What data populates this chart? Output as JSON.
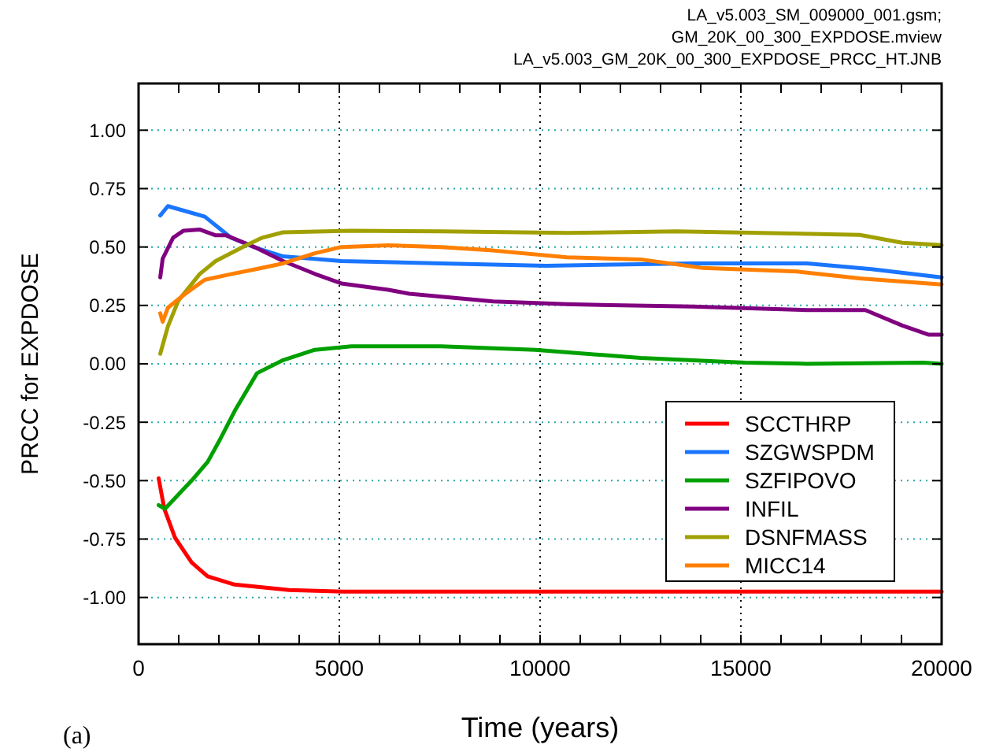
{
  "chart_data": {
    "type": "line",
    "annotations": [
      "LA_v5.003_SM_009000_001.gsm;",
      "GM_20K_00_300_EXPDOSE.mview",
      "LA_v5.003_GM_20K_00_300_EXPDOSE_PRCC_HT.JNB",
      "(a)"
    ],
    "xlabel": "Time (years)",
    "ylabel": "PRCC for EXPDOSE",
    "xlim": [
      0,
      20000
    ],
    "ylim": [
      -1.2,
      1.2
    ],
    "xticks": [
      0,
      {
        "value": 1000,
        "label": null
      },
      {
        "value": 2000,
        "label": null
      },
      {
        "value": 3000,
        "label": null
      },
      {
        "value": 4000,
        "label": null
      },
      5000,
      {
        "value": 6000,
        "label": null
      },
      {
        "value": 7000,
        "label": null
      },
      {
        "value": 8000,
        "label": null
      },
      {
        "value": 9000,
        "label": null
      },
      10000,
      {
        "value": 11000,
        "label": null
      },
      {
        "value": 12000,
        "label": null
      },
      {
        "value": 13000,
        "label": null
      },
      {
        "value": 14000,
        "label": null
      },
      15000,
      {
        "value": 16000,
        "label": null
      },
      {
        "value": 17000,
        "label": null
      },
      {
        "value": 18000,
        "label": null
      },
      {
        "value": 19000,
        "label": null
      },
      20000
    ],
    "yticks": [
      {
        "value": -1,
        "label": "-1.00"
      },
      {
        "value": -0.75,
        "label": "-0.75"
      },
      {
        "value": -0.5,
        "label": "-0.50"
      },
      {
        "value": -0.25,
        "label": "-0.25"
      },
      {
        "value": 0,
        "label": "0.00"
      },
      {
        "value": 0.25,
        "label": "0.25"
      },
      {
        "value": 0.5,
        "label": "0.50"
      },
      {
        "value": 0.75,
        "label": "0.75"
      },
      {
        "value": 1,
        "label": "1.00"
      }
    ],
    "grid": true,
    "legend": "bottom right",
    "marker": "none",
    "line_style": "solid",
    "series": [
      {
        "name": "SCCTHRP",
        "color": "#ff0000",
        "x": [
          500,
          640,
          910,
          1320,
          1720,
          2390,
          3750,
          5100,
          10000,
          15000,
          20000
        ],
        "values": [
          -0.49,
          -0.62,
          -0.745,
          -0.85,
          -0.91,
          -0.945,
          -0.968,
          -0.975,
          -0.975,
          -0.975,
          -0.975
        ]
      },
      {
        "name": "SZGWSPDM",
        "color": "#1a75ff",
        "x": [
          540,
          730,
          1650,
          2300,
          2950,
          3600,
          5050,
          7530,
          10150,
          13800,
          16650,
          18250,
          20000
        ],
        "values": [
          0.635,
          0.675,
          0.63,
          0.54,
          0.495,
          0.46,
          0.44,
          0.43,
          0.42,
          0.43,
          0.43,
          0.405,
          0.37
        ]
      },
      {
        "name": "SZFIPOVO",
        "color": "#00a000",
        "x": [
          500,
          660,
          1320,
          1720,
          2040,
          2400,
          2950,
          3600,
          4390,
          5300,
          7530,
          9880,
          12500,
          15100,
          16650,
          19550,
          20000
        ],
        "values": [
          -0.605,
          -0.62,
          -0.5,
          -0.42,
          -0.32,
          -0.2,
          -0.04,
          0.016,
          0.06,
          0.075,
          0.075,
          0.06,
          0.025,
          0.005,
          0.0,
          0.005,
          0.0
        ]
      },
      {
        "name": "INFIL",
        "color": "#800080",
        "x": [
          540,
          600,
          860,
          1120,
          1520,
          1920,
          2180,
          2950,
          3600,
          4390,
          5050,
          6220,
          6740,
          8830,
          10670,
          13800,
          16650,
          18100,
          19020,
          19670,
          20000
        ],
        "values": [
          0.37,
          0.45,
          0.54,
          0.57,
          0.575,
          0.55,
          0.55,
          0.495,
          0.44,
          0.385,
          0.344,
          0.317,
          0.3,
          0.267,
          0.255,
          0.245,
          0.23,
          0.23,
          0.164,
          0.125,
          0.125
        ]
      },
      {
        "name": "DSNFMASS",
        "color": "#a0a000",
        "x": [
          540,
          730,
          990,
          1520,
          1920,
          2680,
          3080,
          3600,
          5300,
          7530,
          10670,
          13400,
          17960,
          19020,
          20000
        ],
        "values": [
          0.043,
          0.16,
          0.27,
          0.384,
          0.44,
          0.507,
          0.54,
          0.563,
          0.57,
          0.567,
          0.56,
          0.567,
          0.552,
          0.518,
          0.508
        ]
      },
      {
        "name": "MICC14",
        "color": "#ff7f00",
        "x": [
          540,
          600,
          730,
          1120,
          1650,
          2300,
          2950,
          3600,
          4390,
          5050,
          6220,
          7530,
          8830,
          10670,
          12500,
          14060,
          16400,
          17960,
          20000
        ],
        "values": [
          0.216,
          0.18,
          0.24,
          0.294,
          0.36,
          0.384,
          0.406,
          0.43,
          0.473,
          0.5,
          0.507,
          0.5,
          0.485,
          0.456,
          0.447,
          0.41,
          0.395,
          0.366,
          0.34
        ]
      }
    ]
  }
}
